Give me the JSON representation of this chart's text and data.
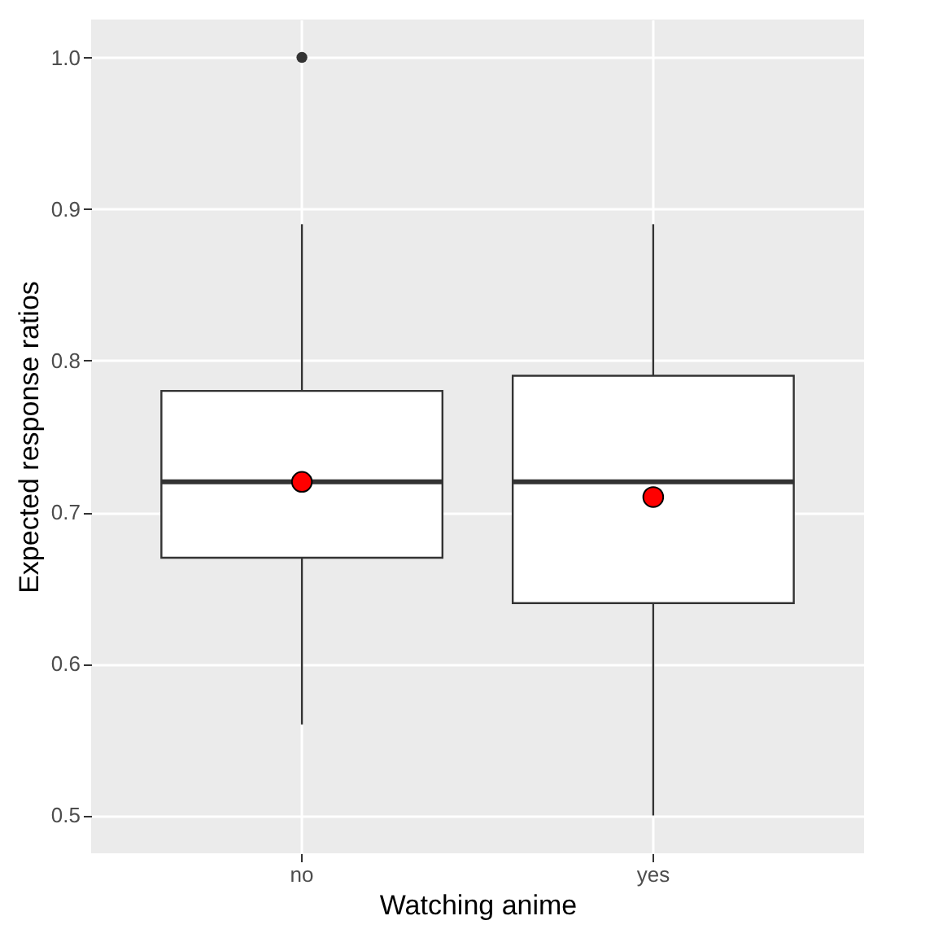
{
  "chart_data": {
    "type": "box",
    "xlabel": "Watching anime",
    "ylabel": "Expected response ratios",
    "categories": [
      "no",
      "yes"
    ],
    "boxes": [
      {
        "low": 0.56,
        "q1": 0.67,
        "median": 0.72,
        "q3": 0.78,
        "high": 0.89,
        "outliers": [
          1.0
        ]
      },
      {
        "low": 0.5,
        "q1": 0.64,
        "median": 0.72,
        "q3": 0.79,
        "high": 0.89
      }
    ],
    "series": [
      {
        "type": "scatter",
        "x": [
          "no",
          "yes"
        ],
        "values": [
          0.72,
          0.71
        ],
        "color": "#ff0000",
        "marker": "circle"
      }
    ],
    "ylim": [
      0.475,
      1.025
    ],
    "yticks": [
      {
        "value": 0.5,
        "label": "0.5"
      },
      {
        "value": 0.6,
        "label": "0.6"
      },
      {
        "value": 0.7,
        "label": "0.7"
      },
      {
        "value": 0.8,
        "label": "0.8"
      },
      {
        "value": 0.9,
        "label": "0.9"
      },
      {
        "value": 1.0,
        "label": "1.0"
      }
    ],
    "grid": true
  }
}
